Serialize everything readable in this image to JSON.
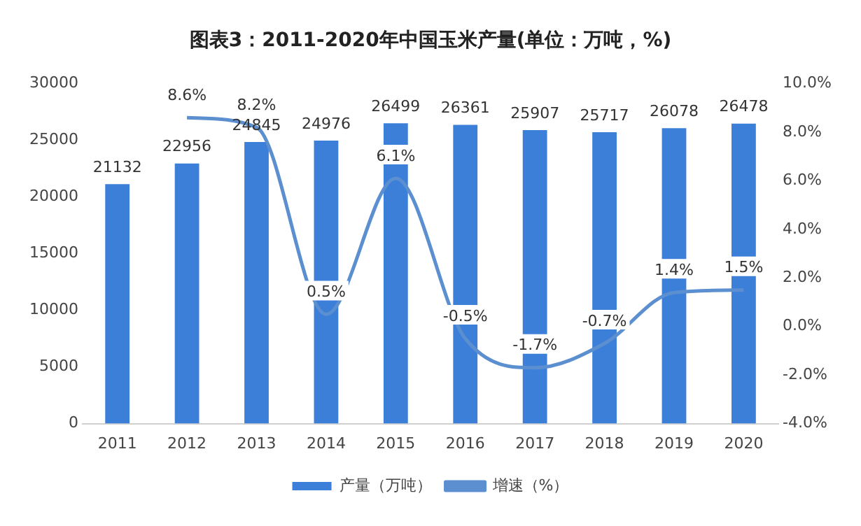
{
  "chart_data": {
    "type": "bar",
    "title": "图表3：2011-2020年中国玉米产量(单位：万吨，%)",
    "categories": [
      "2011",
      "2012",
      "2013",
      "2014",
      "2015",
      "2016",
      "2017",
      "2018",
      "2019",
      "2020"
    ],
    "series": [
      {
        "name": "产量（万吨）",
        "color": "#3c7fd8",
        "values": [
          21132,
          22956,
          24845,
          24976,
          26499,
          26361,
          25907,
          25717,
          26078,
          26478
        ],
        "value_labels": [
          "21132",
          "22956",
          "24845",
          "24976",
          "26499",
          "26361",
          "25907",
          "25717",
          "26078",
          "26478"
        ]
      },
      {
        "name": "增速（%）",
        "type": "line",
        "axis": "y2",
        "color": "#5b8fd0",
        "values": [
          null,
          8.6,
          8.2,
          0.5,
          6.1,
          -0.5,
          -1.7,
          -0.7,
          1.4,
          1.5
        ],
        "value_labels": [
          null,
          "8.6%",
          "8.2%",
          "0.5%",
          "6.1%",
          "-0.5%",
          "-1.7%",
          "-0.7%",
          "1.4%",
          "1.5%"
        ]
      }
    ],
    "ylim": [
      0,
      30000
    ],
    "yticks": [
      0,
      5000,
      10000,
      15000,
      20000,
      25000,
      30000
    ],
    "y2lim": [
      -4,
      10
    ],
    "y2ticks": [
      {
        "value": -4,
        "label": "-4.0%"
      },
      {
        "value": -2,
        "label": "-2.0%"
      },
      {
        "value": 0,
        "label": "0.0%"
      },
      {
        "value": 2,
        "label": "2.0%"
      },
      {
        "value": 4,
        "label": "4.0%"
      },
      {
        "value": 6,
        "label": "6.0%"
      },
      {
        "value": 8,
        "label": "8.0%"
      },
      {
        "value": 10,
        "label": "10.0%"
      }
    ],
    "grid": false,
    "legend": "bottom",
    "marker": "none",
    "line_style": "solid"
  }
}
